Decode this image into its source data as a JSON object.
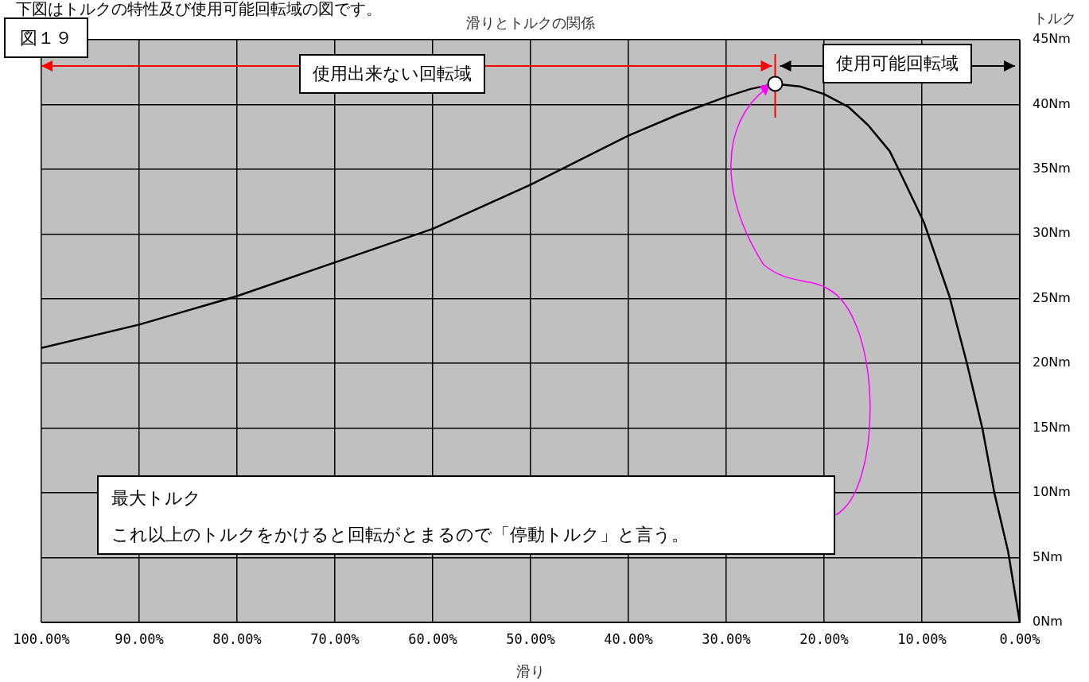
{
  "chart_data": {
    "type": "line",
    "title": "滑りとトルクの関係",
    "xlabel": "滑り",
    "ylabel": "トルク",
    "x": [
      100,
      90,
      80,
      70,
      60,
      50,
      40,
      35,
      30,
      27.5,
      25,
      22.5,
      20,
      17.5,
      15.5,
      13.3,
      12.2,
      9.8,
      7.2,
      5.4,
      3.8,
      2.6,
      1.2,
      0
    ],
    "values": [
      21.2,
      23.0,
      25.2,
      27.8,
      30.4,
      33.8,
      37.6,
      39.2,
      40.6,
      41.2,
      41.6,
      41.4,
      40.8,
      39.8,
      38.4,
      36.4,
      34.7,
      30.9,
      25.2,
      20.0,
      14.9,
      10.0,
      5.5,
      0
    ],
    "color": "#000000",
    "marker": "none",
    "line_style": "solid",
    "grid": true,
    "legend": false,
    "xlim": [
      100,
      0
    ],
    "xticks": [
      {
        "value": 100,
        "label": "100.00%"
      },
      {
        "value": 90,
        "label": "90.00%"
      },
      {
        "value": 80,
        "label": "80.00%"
      },
      {
        "value": 70,
        "label": "70.00%"
      },
      {
        "value": 60,
        "label": "60.00%"
      },
      {
        "value": 50,
        "label": "50.00%"
      },
      {
        "value": 40,
        "label": "40.00%"
      },
      {
        "value": 30,
        "label": "30.00%"
      },
      {
        "value": 20,
        "label": "20.00%"
      },
      {
        "value": 10,
        "label": "10.00%"
      },
      {
        "value": 0,
        "label": "0.00%"
      }
    ],
    "ylim": [
      0,
      45
    ],
    "yticks": [
      {
        "value": 0,
        "label": "0Nm"
      },
      {
        "value": 5,
        "label": "5Nm"
      },
      {
        "value": 10,
        "label": "10Nm"
      },
      {
        "value": 15,
        "label": "15Nm"
      },
      {
        "value": 20,
        "label": "20Nm"
      },
      {
        "value": 25,
        "label": "25Nm"
      },
      {
        "value": 30,
        "label": "30Nm"
      },
      {
        "value": 35,
        "label": "35Nm"
      },
      {
        "value": 40,
        "label": "40Nm"
      },
      {
        "value": 45,
        "label": "45Nm"
      }
    ],
    "ref_lines": [
      {
        "axis": "x",
        "value": 25,
        "color": "#ff0000"
      }
    ],
    "annotations": [
      "下図はトルクの特性及び使用可能回転域の図です。",
      "図１９",
      "使用出来ない回転域",
      "使用可能回転域",
      "最大トルク",
      "これ以上のトルクをかけると回転がとまるので「停動トルク」と言う。"
    ]
  }
}
